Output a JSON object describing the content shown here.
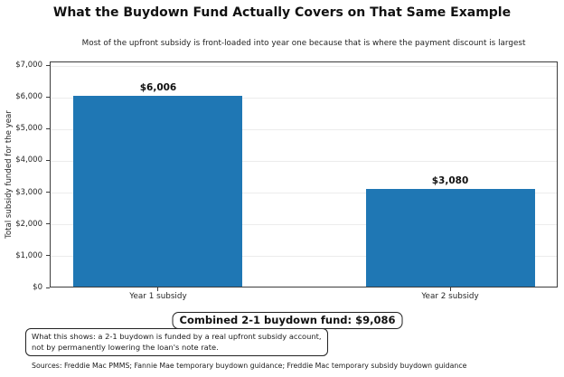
{
  "page": {
    "title": "What the Buydown Fund Actually Covers on That Same Example",
    "subtitle": "Most of the upfront subsidy is front-loaded into year one because that is where the payment discount is largest",
    "source_line": "Sources: Freddie Mac PMMS; Fannie Mae temporary buydown guidance; Freddie Mac temporary subsidy buydown guidance"
  },
  "chart_data": {
    "type": "bar",
    "title": "What the Buydown Fund Actually Covers on That Same Example",
    "subtitle": "Most of the upfront subsidy is front-loaded into year one because that is where the payment discount is largest",
    "categories": [
      "Year 1 subsidy",
      "Year 2 subsidy"
    ],
    "values": [
      6006,
      3080
    ],
    "bar_value_labels": [
      "$6,006",
      "$3,080"
    ],
    "xlabel": "",
    "ylabel": "Total subsidy funded for the year",
    "ylim": [
      0,
      7114
    ],
    "ytick_values": [
      0,
      1000,
      2000,
      3000,
      4000,
      5000,
      6000,
      7000
    ],
    "ytick_labels": [
      "$0",
      "$1,000",
      "$2,000",
      "$3,000",
      "$4,000",
      "$5,000",
      "$6,000",
      "$7,000"
    ],
    "grid": true,
    "legend": null,
    "bar_color": "#1f77b4"
  },
  "annotations": {
    "combined_box": "Combined 2-1 buydown fund: $9,086",
    "explain_lines": [
      "What this shows: a 2-1 buydown is funded by a real upfront subsidy account,",
      "not by permanently lowering the loan's note rate."
    ]
  },
  "colors": {
    "bar": "#1f77b4",
    "grid": "#ececec",
    "spine": "#3c3c3c",
    "text": "#1a1a1a"
  }
}
